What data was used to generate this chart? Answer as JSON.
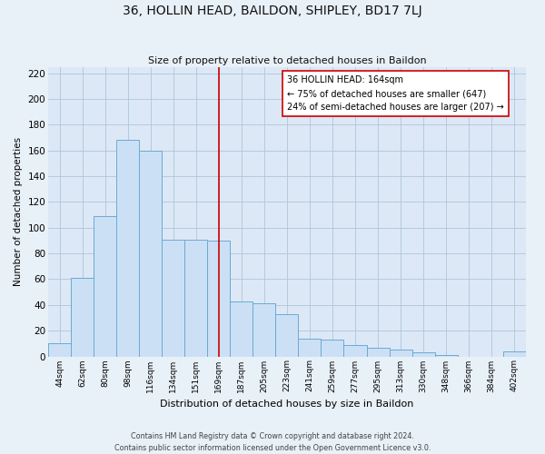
{
  "title": "36, HOLLIN HEAD, BAILDON, SHIPLEY, BD17 7LJ",
  "subtitle": "Size of property relative to detached houses in Baildon",
  "xlabel": "Distribution of detached houses by size in Baildon",
  "ylabel": "Number of detached properties",
  "bar_labels": [
    "44sqm",
    "62sqm",
    "80sqm",
    "98sqm",
    "116sqm",
    "134sqm",
    "151sqm",
    "169sqm",
    "187sqm",
    "205sqm",
    "223sqm",
    "241sqm",
    "259sqm",
    "277sqm",
    "295sqm",
    "313sqm",
    "330sqm",
    "348sqm",
    "366sqm",
    "384sqm",
    "402sqm"
  ],
  "bar_values": [
    10,
    61,
    109,
    168,
    160,
    91,
    91,
    90,
    43,
    41,
    33,
    14,
    13,
    9,
    7,
    5,
    3,
    1,
    0,
    0,
    4
  ],
  "bar_color": "#cce0f5",
  "bar_edge_color": "#6aaad4",
  "vline_x": 7,
  "vline_color": "#cc0000",
  "annotation_title": "36 HOLLIN HEAD: 164sqm",
  "annotation_line1": "← 75% of detached houses are smaller (647)",
  "annotation_line2": "24% of semi-detached houses are larger (207) →",
  "annotation_box_color": "#ffffff",
  "annotation_box_edge": "#cc0000",
  "ylim": [
    0,
    225
  ],
  "yticks": [
    0,
    20,
    40,
    60,
    80,
    100,
    120,
    140,
    160,
    180,
    200,
    220
  ],
  "bg_color": "#dce8f5",
  "fig_bg_color": "#e8f0f8",
  "footer_line1": "Contains HM Land Registry data © Crown copyright and database right 2024.",
  "footer_line2": "Contains public sector information licensed under the Open Government Licence v3.0."
}
